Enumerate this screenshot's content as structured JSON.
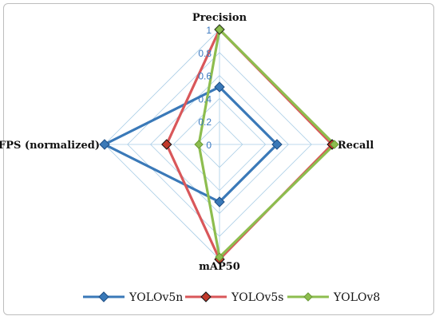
{
  "chart_data": {
    "type": "radar",
    "axes": [
      "Precision",
      "Recall",
      "mAP50",
      "FPS (normalized)"
    ],
    "ticks": [
      "0",
      "0.2",
      "0.4",
      "0.6",
      "0.8",
      "1"
    ],
    "rlim": [
      0,
      1
    ],
    "grid": true,
    "legend_position": "bottom",
    "series": [
      {
        "name": "YOLOv5n",
        "color": "#3a79b8",
        "marker": "diamond",
        "values": [
          0.5,
          0.5,
          0.5,
          1.0
        ]
      },
      {
        "name": "YOLOv5s",
        "color": "#d9575a",
        "marker": "diamond",
        "values": [
          1.0,
          0.98,
          1.0,
          0.46
        ]
      },
      {
        "name": "YOLOv8",
        "color": "#8dbd4f",
        "marker": "diamond",
        "values": [
          1.0,
          1.0,
          0.98,
          0.18
        ]
      }
    ]
  }
}
